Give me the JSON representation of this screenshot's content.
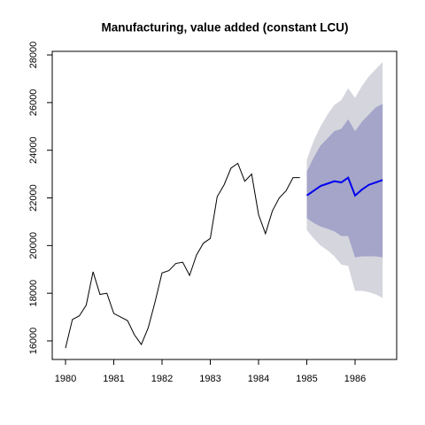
{
  "chart_data": {
    "type": "line",
    "title": "Manufacturing, value added (constant LCU)",
    "x": [
      1980,
      1980.143,
      1980.286,
      1980.429,
      1980.571,
      1980.714,
      1980.857,
      1981,
      1981.143,
      1981.286,
      1981.429,
      1981.571,
      1981.714,
      1981.857,
      1982,
      1982.143,
      1982.286,
      1982.429,
      1982.571,
      1982.714,
      1982.857,
      1983,
      1983.143,
      1983.286,
      1983.429,
      1983.571,
      1983.714,
      1983.857,
      1984,
      1984.143,
      1984.286,
      1984.429,
      1984.571,
      1984.714,
      1984.857
    ],
    "values": [
      15700,
      16900,
      17050,
      17500,
      18900,
      17950,
      18000,
      17150,
      17000,
      16850,
      16250,
      15850,
      16550,
      17650,
      18850,
      18950,
      19250,
      19300,
      18750,
      19600,
      20100,
      20300,
      22050,
      22550,
      23250,
      23450,
      22700,
      23000,
      21300,
      20500,
      21450,
      22000,
      22300,
      22850,
      22850
    ],
    "color": "#000000",
    "forecast": {
      "x": [
        1985,
        1985.143,
        1985.286,
        1985.429,
        1985.571,
        1985.714,
        1985.857,
        1986,
        1986.143,
        1986.286,
        1986.429,
        1986.571
      ],
      "mean": [
        22100,
        22300,
        22500,
        22600,
        22700,
        22650,
        22850,
        22100,
        22350,
        22550,
        22650,
        22750
      ],
      "lo80": [
        21150,
        20950,
        20800,
        20700,
        20600,
        20400,
        20400,
        19500,
        19550,
        19550,
        19550,
        19500
      ],
      "hi80": [
        23100,
        23700,
        24200,
        24500,
        24800,
        24900,
        25300,
        24800,
        25200,
        25500,
        25800,
        25950
      ],
      "lo95": [
        20650,
        20300,
        20000,
        19800,
        19550,
        19200,
        19150,
        18100,
        18100,
        18050,
        17950,
        17800
      ],
      "hi95": [
        23600,
        24400,
        25000,
        25500,
        25900,
        26100,
        26600,
        26200,
        26700,
        27100,
        27400,
        27700
      ],
      "color": "#0000ee",
      "color80": "#a4a5c9",
      "color95": "#d5d5dd"
    },
    "xlim": [
      1979.725,
      1986.862
    ],
    "ylim": [
      15220,
      28150
    ],
    "xticks": [
      1980,
      1981,
      1982,
      1983,
      1984,
      1985,
      1986
    ],
    "yticks": [
      16000,
      18000,
      20000,
      22000,
      24000,
      26000,
      28000
    ]
  }
}
